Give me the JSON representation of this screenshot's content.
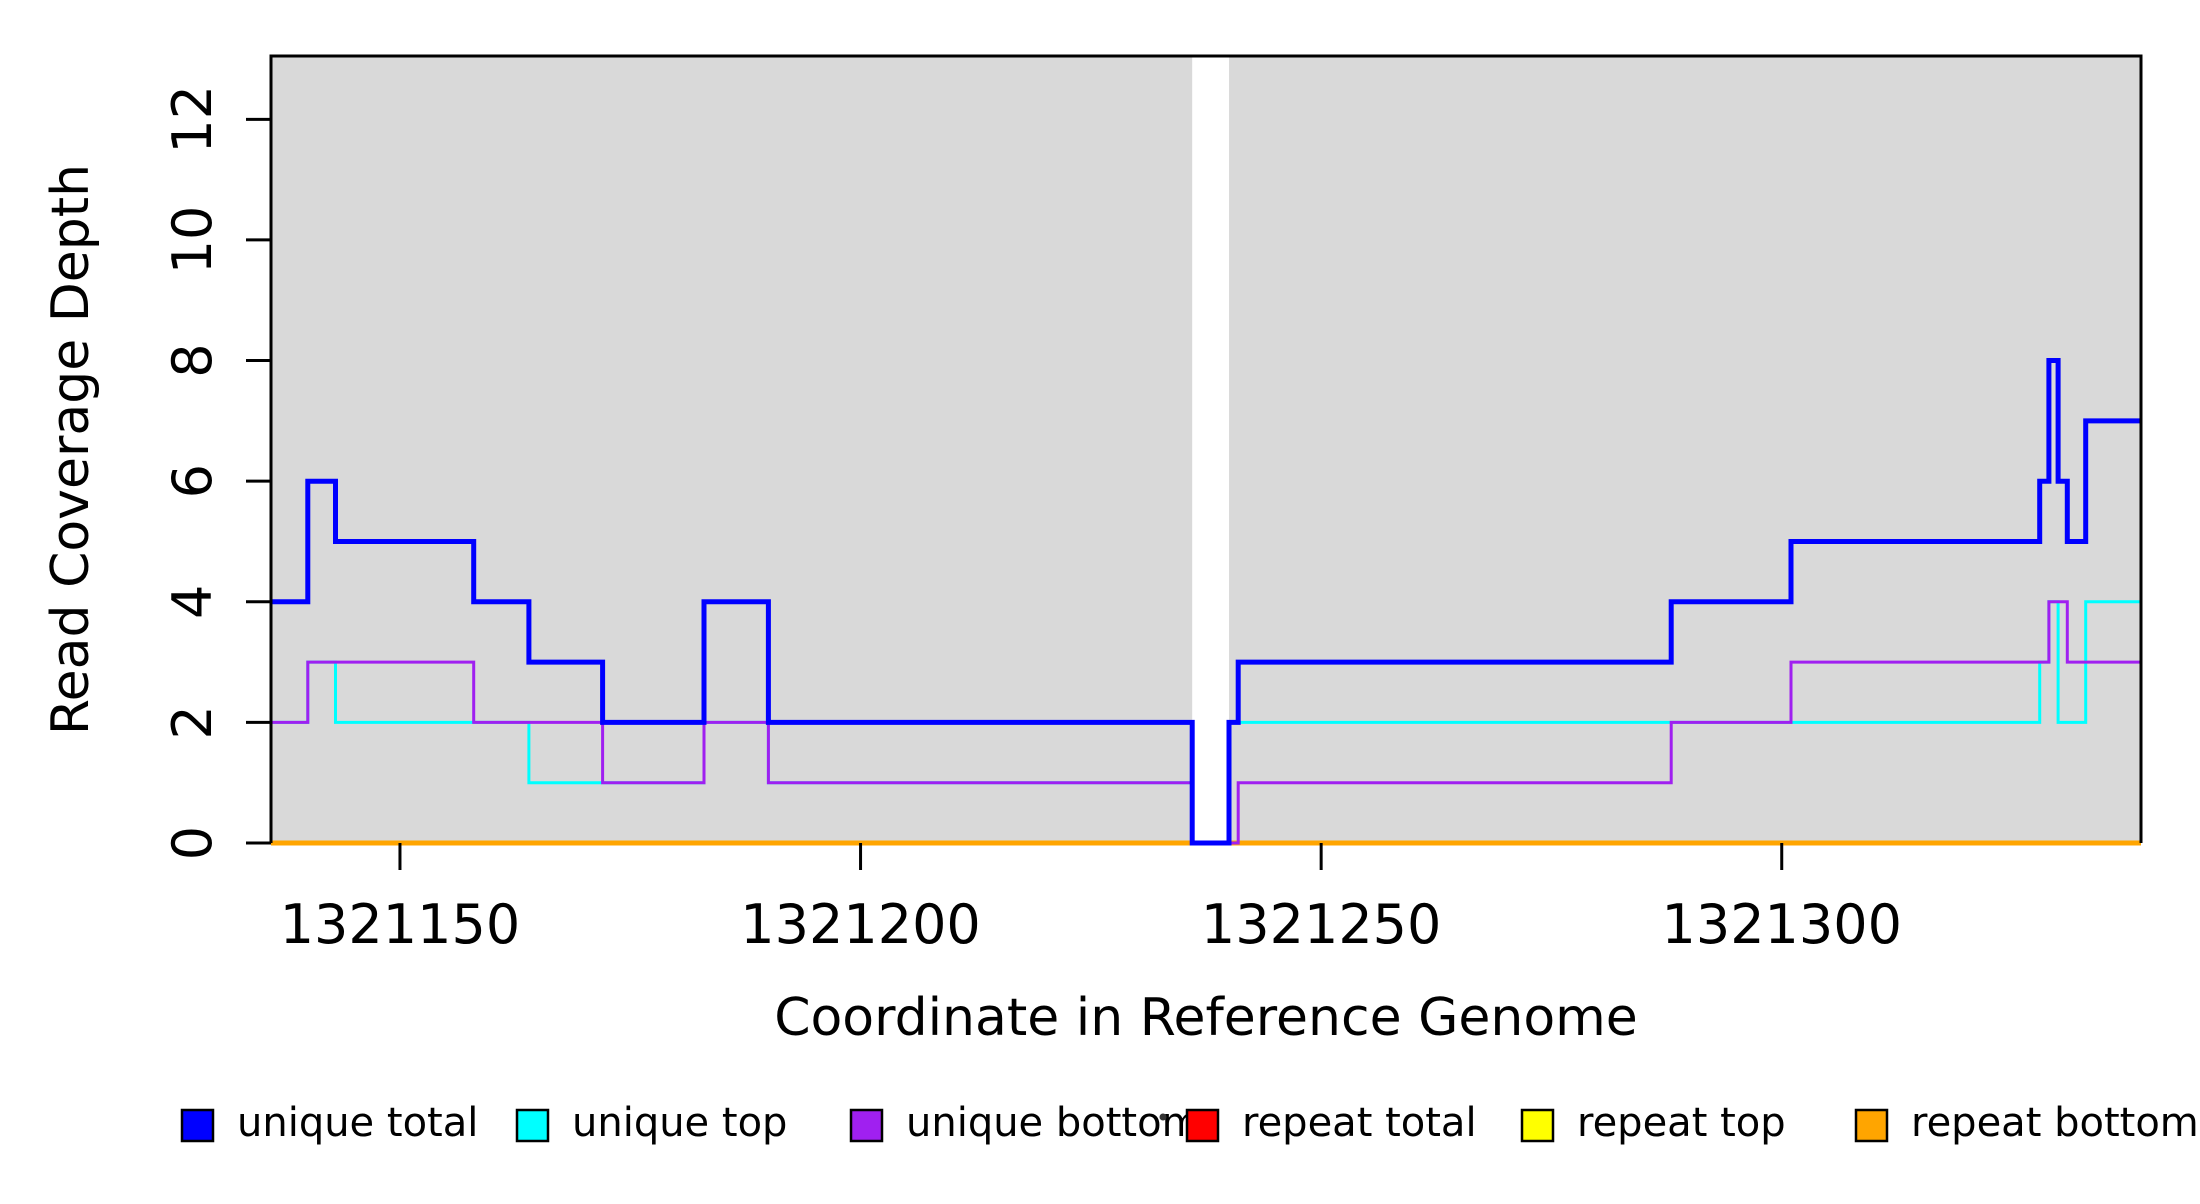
{
  "figure": {
    "background_color": "#ffffff",
    "plot_background_color": "#d9d9d9",
    "box_border_color": "#000000"
  },
  "chart_data": {
    "type": "line",
    "subtype": "step-coverage",
    "title": "",
    "xlabel": "Coordinate in Reference Genome",
    "ylabel": "Read Coverage Depth",
    "xlim": [
      1321136,
      1321339
    ],
    "ylim": [
      0,
      13.05
    ],
    "x_ticks": [
      1321150,
      1321200,
      1321250,
      1321300
    ],
    "y_ticks": [
      0,
      2,
      4,
      6,
      8,
      10,
      12
    ],
    "grid": false,
    "plot_background_gap_x": [
      1321236,
      1321240
    ],
    "legend_position": "bottom",
    "series": [
      {
        "name": "repeat total",
        "color": "#ff0000",
        "stroke_width": 5,
        "segments": [
          [
            1321136,
            1321339,
            0
          ]
        ]
      },
      {
        "name": "repeat top",
        "color": "#ffff00",
        "stroke_width": 3,
        "segments": [
          [
            1321136,
            1321339,
            0
          ]
        ]
      },
      {
        "name": "repeat bottom",
        "color": "#ffa500",
        "stroke_width": 5,
        "segments": [
          [
            1321136,
            1321339,
            0
          ]
        ]
      },
      {
        "name": "unique top",
        "color": "#00ffff",
        "stroke_width": 3,
        "segments": [
          [
            1321136,
            1321140,
            2
          ],
          [
            1321140,
            1321143,
            3
          ],
          [
            1321143,
            1321164,
            2
          ],
          [
            1321164,
            1321183,
            1
          ],
          [
            1321183,
            1321190,
            2
          ],
          [
            1321190,
            1321236,
            1
          ],
          [
            1321236,
            1321240,
            0
          ],
          [
            1321240,
            1321328,
            2
          ],
          [
            1321328,
            1321329,
            3
          ],
          [
            1321329,
            1321330,
            4
          ],
          [
            1321330,
            1321333,
            2
          ],
          [
            1321333,
            1321339,
            4
          ]
        ]
      },
      {
        "name": "unique bottom",
        "color": "#a020f0",
        "stroke_width": 3,
        "segments": [
          [
            1321136,
            1321140,
            2
          ],
          [
            1321140,
            1321158,
            3
          ],
          [
            1321158,
            1321172,
            2
          ],
          [
            1321172,
            1321183,
            1
          ],
          [
            1321183,
            1321190,
            2
          ],
          [
            1321190,
            1321236,
            1
          ],
          [
            1321236,
            1321241,
            0
          ],
          [
            1321241,
            1321288,
            1
          ],
          [
            1321288,
            1321301,
            2
          ],
          [
            1321301,
            1321329,
            3
          ],
          [
            1321329,
            1321331,
            4
          ],
          [
            1321331,
            1321339,
            3
          ]
        ]
      },
      {
        "name": "unique total",
        "color": "#0000ff",
        "stroke_width": 5,
        "segments": [
          [
            1321136,
            1321140,
            4
          ],
          [
            1321140,
            1321143,
            6
          ],
          [
            1321143,
            1321158,
            5
          ],
          [
            1321158,
            1321164,
            4
          ],
          [
            1321164,
            1321172,
            3
          ],
          [
            1321172,
            1321183,
            2
          ],
          [
            1321183,
            1321190,
            4
          ],
          [
            1321190,
            1321236,
            2
          ],
          [
            1321236,
            1321240,
            0
          ],
          [
            1321240,
            1321241,
            2
          ],
          [
            1321241,
            1321288,
            3
          ],
          [
            1321288,
            1321301,
            4
          ],
          [
            1321301,
            1321328,
            5
          ],
          [
            1321328,
            1321329,
            6
          ],
          [
            1321329,
            1321330,
            8
          ],
          [
            1321330,
            1321331,
            6
          ],
          [
            1321331,
            1321333,
            5
          ],
          [
            1321333,
            1321339,
            7
          ]
        ]
      }
    ],
    "legend": {
      "items": [
        {
          "label": "unique total",
          "color": "#0000ff"
        },
        {
          "label": "unique top",
          "color": "#00ffff"
        },
        {
          "label": "unique bottom",
          "color": "#a020f0"
        },
        {
          "label": "repeat total",
          "color": "#ff0000"
        },
        {
          "label": "repeat top",
          "color": "#ffff00"
        },
        {
          "label": "repeat bottom",
          "color": "#ffa500"
        }
      ]
    }
  }
}
